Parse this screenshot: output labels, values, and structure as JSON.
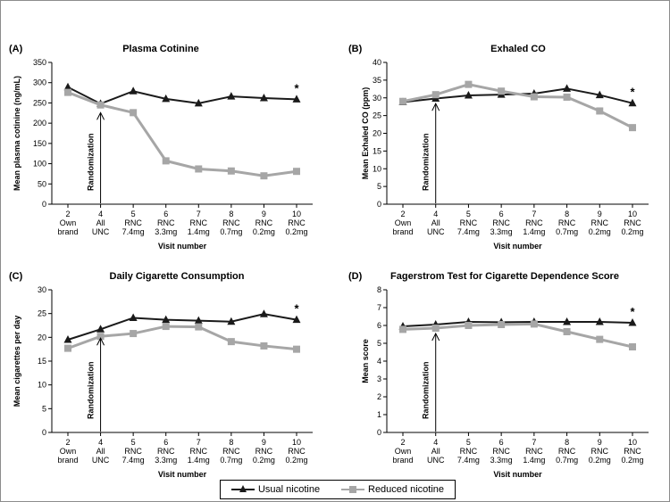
{
  "colors": {
    "usual": "#1a1a1a",
    "reduced": "#a6a6a6",
    "axis": "#000000"
  },
  "legend": {
    "usual_label": "Usual nicotine",
    "reduced_label": "Reduced nicotine"
  },
  "x_categories": [
    [
      "2",
      "Own",
      "brand"
    ],
    [
      "4",
      "All",
      "UNC"
    ],
    [
      "5",
      "RNC",
      "7.4mg"
    ],
    [
      "6",
      "RNC",
      "3.3mg"
    ],
    [
      "7",
      "RNC",
      "1.4mg"
    ],
    [
      "8",
      "RNC",
      "0.7mg"
    ],
    [
      "9",
      "RNC",
      "0.2mg"
    ],
    [
      "10",
      "RNC",
      "0.2mg"
    ]
  ],
  "chart_data": [
    {
      "type": "line",
      "panel": "(A)",
      "title": "Plasma Cotinine",
      "ylabel": "Mean plasma cotinine (ng/mL)",
      "xlabel": "",
      "ylim": [
        0,
        350
      ],
      "ystep": 50,
      "annotation": "Randomization",
      "significance_marker": "*",
      "series": [
        {
          "name": "Usual nicotine",
          "values": [
            289,
            248,
            279,
            260,
            249,
            266,
            262,
            259
          ]
        },
        {
          "name": "Reduced nicotine",
          "values": [
            276,
            245,
            226,
            107,
            87,
            82,
            70,
            81
          ]
        }
      ]
    },
    {
      "type": "line",
      "panel": "(B)",
      "title": "Exhaled CO",
      "ylabel": "Mean Exhaled CO (ppm)",
      "xlabel": "",
      "ylim": [
        0,
        40
      ],
      "ystep": 5,
      "annotation": "Randomization",
      "significance_marker": "*",
      "series": [
        {
          "name": "Usual nicotine",
          "values": [
            28.8,
            29.8,
            30.7,
            30.9,
            31.2,
            32.6,
            30.8,
            28.5
          ]
        },
        {
          "name": "Reduced nicotine",
          "values": [
            29.0,
            30.9,
            33.8,
            31.9,
            30.3,
            30.2,
            26.3,
            21.6
          ]
        }
      ]
    },
    {
      "type": "line",
      "panel": "(C)",
      "title": "Daily Cigarette Consumption",
      "ylabel": "Mean cigarettes per day",
      "xlabel": "",
      "ylim": [
        0,
        30
      ],
      "ystep": 5,
      "annotation": "Randomization",
      "significance_marker": "*",
      "series": [
        {
          "name": "Usual nicotine",
          "values": [
            19.5,
            21.7,
            24.1,
            23.7,
            23.5,
            23.3,
            24.9,
            23.7
          ]
        },
        {
          "name": "Reduced nicotine",
          "values": [
            17.7,
            20.2,
            20.8,
            22.3,
            22.2,
            19.1,
            18.2,
            17.5
          ]
        }
      ]
    },
    {
      "type": "line",
      "panel": "(D)",
      "title": "Fagerstrom Test for Cigarette Dependence Score",
      "ylabel": "Mean score",
      "xlabel": "Visit number",
      "ylim": [
        0,
        8
      ],
      "ystep": 1,
      "annotation": "Randomization",
      "significance_marker": "*",
      "series": [
        {
          "name": "Usual nicotine",
          "values": [
            5.95,
            6.05,
            6.2,
            6.18,
            6.2,
            6.2,
            6.2,
            6.15
          ]
        },
        {
          "name": "Reduced nicotine",
          "values": [
            5.78,
            5.85,
            6.0,
            6.05,
            6.08,
            5.65,
            5.22,
            4.8
          ]
        }
      ]
    }
  ],
  "x_axis_titles": [
    "Visit number",
    "Visit number",
    "Visit number",
    "Visit number"
  ]
}
